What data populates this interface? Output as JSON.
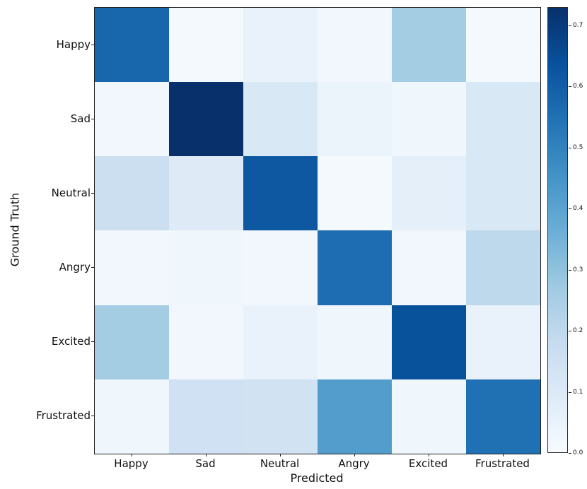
{
  "figure": {
    "background": "#ffffff",
    "text_color": "#111111",
    "spine_color": "#1f1f1f"
  },
  "chart_data": {
    "type": "heatmap",
    "title": "",
    "xlabel": "Predicted",
    "ylabel": "Ground Truth",
    "x_categories": [
      "Happy",
      "Sad",
      "Neutral",
      "Angry",
      "Excited",
      "Frustrated"
    ],
    "y_categories": [
      "Happy",
      "Sad",
      "Neutral",
      "Angry",
      "Excited",
      "Frustrated"
    ],
    "matrix": [
      [
        0.58,
        0.01,
        0.05,
        0.02,
        0.26,
        0.01
      ],
      [
        0.02,
        0.73,
        0.11,
        0.04,
        0.03,
        0.11
      ],
      [
        0.16,
        0.09,
        0.62,
        0.01,
        0.07,
        0.11
      ],
      [
        0.02,
        0.03,
        0.02,
        0.56,
        0.02,
        0.2
      ],
      [
        0.26,
        0.02,
        0.05,
        0.03,
        0.64,
        0.05
      ],
      [
        0.03,
        0.15,
        0.14,
        0.42,
        0.03,
        0.55
      ]
    ],
    "vmin": 0.0,
    "vmax": 0.73,
    "colormap": "Blues",
    "colormap_stops": [
      [
        0.0,
        [
          247,
          251,
          255
        ]
      ],
      [
        0.125,
        [
          222,
          235,
          247
        ]
      ],
      [
        0.25,
        [
          198,
          219,
          239
        ]
      ],
      [
        0.375,
        [
          158,
          202,
          225
        ]
      ],
      [
        0.5,
        [
          107,
          174,
          214
        ]
      ],
      [
        0.625,
        [
          66,
          146,
          198
        ]
      ],
      [
        0.75,
        [
          33,
          113,
          181
        ]
      ],
      [
        0.875,
        [
          8,
          81,
          156
        ]
      ],
      [
        1.0,
        [
          8,
          48,
          107
        ]
      ]
    ],
    "colorbar_ticks": [
      0.0,
      0.1,
      0.2,
      0.3,
      0.4,
      0.5,
      0.6,
      0.7
    ],
    "grid": false,
    "legend_position": "colorbar-right"
  }
}
